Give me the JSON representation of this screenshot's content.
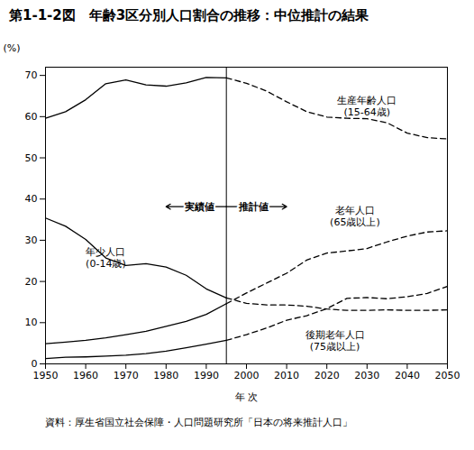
{
  "chart_data": {
    "type": "line",
    "title": "第1-1-2図　年齢3区分別人口割合の推移：中位推計の結果",
    "caption": "資料：厚生省国立社会保障・人口問題研究所「日本の将来推計人口」",
    "xlabel": "年 次",
    "ylabel": "(%)",
    "x": [
      1950,
      1955,
      1960,
      1965,
      1970,
      1975,
      1980,
      1985,
      1990,
      1995,
      2000,
      2005,
      2010,
      2015,
      2020,
      2025,
      2030,
      2035,
      2040,
      2045,
      2050
    ],
    "series": [
      {
        "name": "生産年齢人口\n(15-64歳)",
        "color": "#000000",
        "line_style": "solid",
        "values": [
          59.6,
          61.2,
          64.1,
          68.0,
          68.9,
          67.7,
          67.4,
          68.2,
          69.5,
          69.4,
          68.1,
          66.2,
          63.6,
          61.2,
          59.9,
          59.6,
          59.5,
          58.5,
          56.0,
          54.9,
          54.6
        ]
      },
      {
        "name": "年少人口\n(0-14歳)",
        "color": "#000000",
        "line_style": "solid",
        "values": [
          35.4,
          33.4,
          30.2,
          25.7,
          23.9,
          24.3,
          23.5,
          21.5,
          18.2,
          16.0,
          14.7,
          14.3,
          14.3,
          14.0,
          13.3,
          13.0,
          13.0,
          13.1,
          13.0,
          13.0,
          13.1
        ]
      },
      {
        "name": "老年人口\n(65歳以上)",
        "color": "#000000",
        "line_style": "solid",
        "values": [
          4.9,
          5.3,
          5.7,
          6.3,
          7.1,
          7.9,
          9.1,
          10.3,
          12.0,
          14.6,
          17.2,
          19.6,
          22.0,
          25.2,
          26.9,
          27.4,
          28.0,
          29.6,
          31.0,
          32.0,
          32.3
        ]
      },
      {
        "name": "後期老年人口\n(75歳以上)",
        "color": "#000000",
        "line_style": "solid",
        "values": [
          1.3,
          1.6,
          1.7,
          1.9,
          2.1,
          2.5,
          3.1,
          3.9,
          4.8,
          5.7,
          7.1,
          8.7,
          10.6,
          11.7,
          13.4,
          15.9,
          16.1,
          15.8,
          16.3,
          17.1,
          18.8
        ]
      }
    ],
    "annotations": {
      "actual_label": "実績値",
      "projection_label": "推計値",
      "projection_from": 1995,
      "projection_line_style": "dashed"
    },
    "xlim": [
      1950,
      2050
    ],
    "xticks": [
      1950,
      1960,
      1970,
      1980,
      1990,
      2000,
      2010,
      2020,
      2030,
      2040,
      2050
    ],
    "ylim": [
      0,
      72
    ],
    "yticks": [
      0,
      10,
      20,
      30,
      40,
      50,
      60,
      70
    ],
    "grid": false
  }
}
